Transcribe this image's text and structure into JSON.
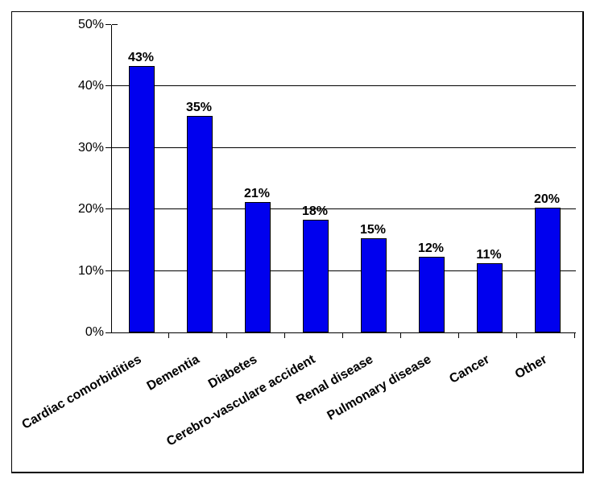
{
  "chart_data": {
    "type": "bar",
    "title": "",
    "xlabel": "",
    "ylabel": "",
    "categories": [
      "Cardiac comorbidities",
      "Dementia",
      "Diabetes",
      "Cerebro-vasculare accident",
      "Renal disease",
      "Pulmonary disease",
      "Cancer",
      "Other"
    ],
    "values": [
      43,
      35,
      21,
      18,
      15,
      12,
      11,
      20
    ],
    "data_labels": [
      "43%",
      "35%",
      "21%",
      "18%",
      "15%",
      "12%",
      "11%",
      "20%"
    ],
    "y_tick_values": [
      0,
      10,
      20,
      30,
      40,
      50
    ],
    "y_tick_labels": [
      "0%",
      "10%",
      "20%",
      "30%",
      "40%",
      "50%"
    ],
    "ylim": [
      0,
      50
    ],
    "grid": "horizontal",
    "legend": "none",
    "x_label_rotation_deg": -30,
    "colors": {
      "bar_fill": "#0000EE",
      "bar_border": "#000000",
      "axis": "#000000",
      "gridline": "#000000",
      "text": "#000000",
      "background": "#FFFFFF"
    }
  }
}
